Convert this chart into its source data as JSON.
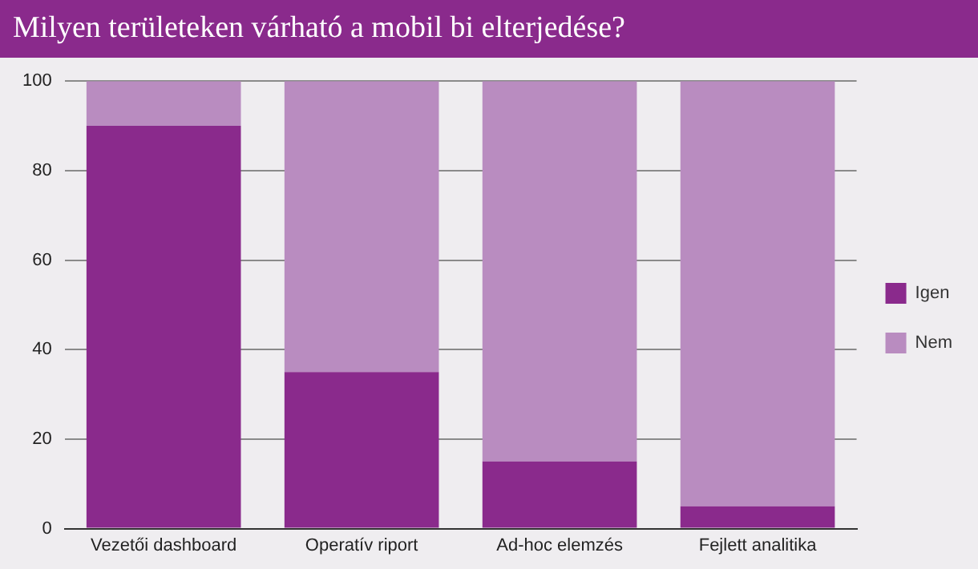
{
  "chart_data": {
    "type": "bar",
    "title": "Milyen területeken várható a mobil bi elterjedése?",
    "categories": [
      "Vezetői dashboard",
      "Operatív riport",
      "Ad-hoc elemzés",
      "Fejlett analitika"
    ],
    "series": [
      {
        "name": "Igen",
        "color": "#8a2a8c",
        "values": [
          90,
          35,
          15,
          5
        ]
      },
      {
        "name": "Nem",
        "color": "#b98cc0",
        "values": [
          10,
          65,
          85,
          95
        ]
      }
    ],
    "stacked": true,
    "ylim": [
      0,
      100
    ],
    "yticks": [
      0,
      20,
      40,
      60,
      80,
      100
    ],
    "grid": "y",
    "legend": "right"
  }
}
